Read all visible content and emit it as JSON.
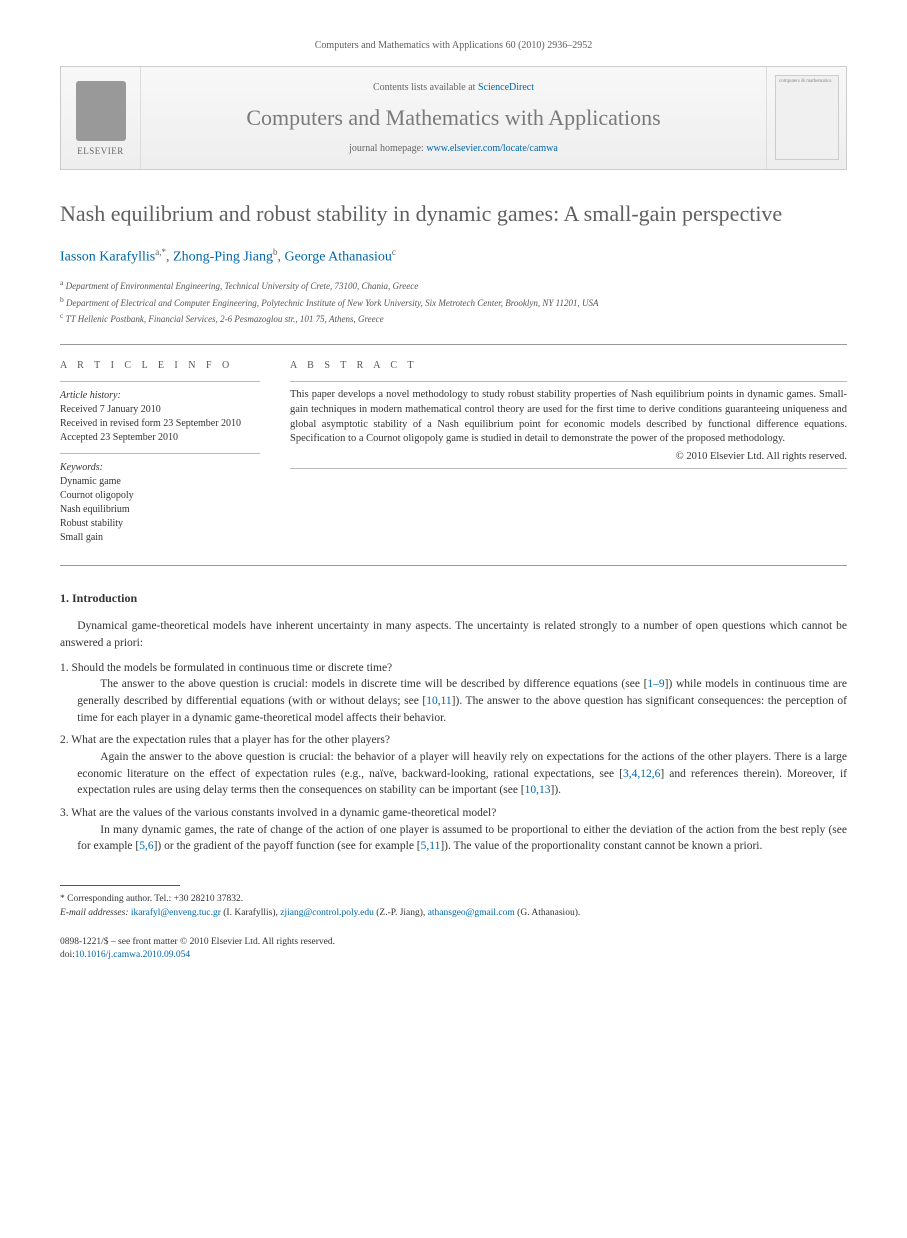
{
  "citation": "Computers and Mathematics with Applications 60 (2010) 2936–2952",
  "header": {
    "contents_prefix": "Contents lists available at ",
    "contents_link": "ScienceDirect",
    "journal_name": "Computers and Mathematics with Applications",
    "homepage_prefix": "journal homepage: ",
    "homepage_url": "www.elsevier.com/locate/camwa",
    "elsevier_label": "ELSEVIER",
    "cover_text": "computers & mathematics"
  },
  "title": "Nash equilibrium and robust stability in dynamic games: A small-gain perspective",
  "authors_html": "Iasson Karafyllis",
  "authors": [
    {
      "name": "Iasson Karafyllis",
      "sup": "a,*"
    },
    {
      "name": "Zhong-Ping Jiang",
      "sup": "b"
    },
    {
      "name": "George Athanasiou",
      "sup": "c"
    }
  ],
  "affiliations": [
    {
      "sup": "a",
      "text": "Department of Environmental Engineering, Technical University of Crete, 73100, Chania, Greece"
    },
    {
      "sup": "b",
      "text": "Department of Electrical and Computer Engineering, Polytechnic Institute of New York University, Six Metrotech Center, Brooklyn, NY 11201, USA"
    },
    {
      "sup": "c",
      "text": "TT Hellenic Postbank, Financial Services, 2-6 Pesmazoglou str., 101 75, Athens, Greece"
    }
  ],
  "info": {
    "heading": "A R T I C L E   I N F O",
    "history_label": "Article history:",
    "history": [
      "Received 7 January 2010",
      "Received in revised form 23 September 2010",
      "Accepted 23 September 2010"
    ],
    "keywords_label": "Keywords:",
    "keywords": [
      "Dynamic game",
      "Cournot oligopoly",
      "Nash equilibrium",
      "Robust stability",
      "Small gain"
    ]
  },
  "abstract": {
    "heading": "A B S T R A C T",
    "text": "This paper develops a novel methodology to study robust stability properties of Nash equilibrium points in dynamic games. Small-gain techniques in modern mathematical control theory are used for the first time to derive conditions guaranteeing uniqueness and global asymptotic stability of a Nash equilibrium point for economic models described by functional difference equations. Specification to a Cournot oligopoly game is studied in detail to demonstrate the power of the proposed methodology.",
    "copyright": "© 2010 Elsevier Ltd. All rights reserved."
  },
  "section1": {
    "heading": "1. Introduction",
    "intro": "Dynamical game-theoretical models have inherent uncertainty in many aspects. The uncertainty is related strongly to a number of open questions which cannot be answered a priori:",
    "items": [
      {
        "q": "1. Should the models be formulated in continuous time or discrete time?",
        "a_parts": [
          {
            "t": "The answer to the above question is crucial: models in discrete time will be described by difference equations (see ["
          },
          {
            "ref": "1–9"
          },
          {
            "t": "]) while models in continuous time are generally described by differential equations (with or without delays; see ["
          },
          {
            "ref": "10,11"
          },
          {
            "t": "]). The answer to the above question has significant consequences: the perception of time for each player in a dynamic game-theoretical model affects their behavior."
          }
        ]
      },
      {
        "q": "2. What are the expectation rules that a player has for the other players?",
        "a_parts": [
          {
            "t": "Again the answer to the above question is crucial: the behavior of a player will heavily rely on expectations for the actions of the other players. There is a large economic literature on the effect of expectation rules (e.g., naïve, backward-looking, rational expectations, see ["
          },
          {
            "ref": "3,4,12,6"
          },
          {
            "t": "] and references therein). Moreover, if expectation rules are using delay terms then the consequences on stability can be important (see ["
          },
          {
            "ref": "10,13"
          },
          {
            "t": "])."
          }
        ]
      },
      {
        "q": "3. What are the values of the various constants involved in a dynamic game-theoretical model?",
        "a_parts": [
          {
            "t": "In many dynamic games, the rate of change of the action of one player is assumed to be proportional to either the deviation of the action from the best reply (see for example ["
          },
          {
            "ref": "5,6"
          },
          {
            "t": "]) or the gradient of the payoff function (see for example ["
          },
          {
            "ref": "5,11"
          },
          {
            "t": "]). The value of the proportionality constant cannot be known a priori."
          }
        ]
      }
    ]
  },
  "footnotes": {
    "corr": "* Corresponding author. Tel.: +30 28210 37832.",
    "email_label": "E-mail addresses: ",
    "emails": [
      {
        "addr": "ikarafyl@enveng.tuc.gr",
        "who": " (I. Karafyllis), "
      },
      {
        "addr": "zjiang@control.poly.edu",
        "who": " (Z.-P. Jiang), "
      },
      {
        "addr": "athansgeo@gmail.com",
        "who": " (G. Athanasiou)."
      }
    ]
  },
  "bottom": {
    "issn": "0898-1221/$ – see front matter © 2010 Elsevier Ltd. All rights reserved.",
    "doi_label": "doi:",
    "doi": "10.1016/j.camwa.2010.09.054"
  },
  "colors": {
    "link": "#0066aa",
    "heading_gray": "#606060",
    "rule": "#999999"
  }
}
